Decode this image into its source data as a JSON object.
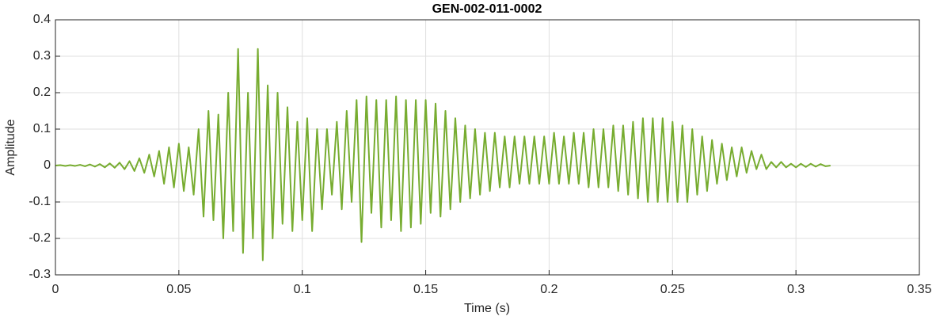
{
  "chart_data": {
    "type": "line",
    "title": "GEN-002-011-0002",
    "x_label": "Time (s)",
    "y_label": "Amplitude",
    "xlim": [
      0,
      0.35
    ],
    "xticks": [
      0,
      0.05,
      0.1,
      0.15,
      0.2,
      0.25,
      0.3,
      0.35
    ],
    "ylim": [
      -0.3,
      0.4
    ],
    "yticks": [
      -0.3,
      -0.2,
      -0.1,
      0,
      0.1,
      0.2,
      0.3,
      0.4
    ],
    "grid": true,
    "x": [
      0,
      0.002,
      0.004,
      0.006,
      0.008,
      0.01,
      0.012,
      0.014,
      0.016,
      0.018,
      0.02,
      0.022,
      0.024,
      0.026,
      0.028,
      0.03,
      0.032,
      0.034,
      0.036,
      0.038,
      0.04,
      0.042,
      0.044,
      0.046,
      0.048,
      0.05,
      0.052,
      0.054,
      0.056,
      0.058,
      0.06,
      0.062,
      0.064,
      0.066,
      0.068,
      0.07,
      0.072,
      0.074,
      0.076,
      0.078,
      0.08,
      0.082,
      0.084,
      0.086,
      0.088,
      0.09,
      0.092,
      0.094,
      0.096,
      0.098,
      0.1,
      0.102,
      0.104,
      0.106,
      0.108,
      0.11,
      0.112,
      0.114,
      0.116,
      0.118,
      0.12,
      0.122,
      0.124,
      0.126,
      0.128,
      0.13,
      0.132,
      0.134,
      0.136,
      0.138,
      0.14,
      0.142,
      0.144,
      0.146,
      0.148,
      0.15,
      0.152,
      0.154,
      0.156,
      0.158,
      0.16,
      0.162,
      0.164,
      0.166,
      0.168,
      0.17,
      0.172,
      0.174,
      0.176,
      0.178,
      0.18,
      0.182,
      0.184,
      0.186,
      0.188,
      0.19,
      0.192,
      0.194,
      0.196,
      0.198,
      0.2,
      0.202,
      0.204,
      0.206,
      0.208,
      0.21,
      0.212,
      0.214,
      0.216,
      0.218,
      0.22,
      0.222,
      0.224,
      0.226,
      0.228,
      0.23,
      0.232,
      0.234,
      0.236,
      0.238,
      0.24,
      0.242,
      0.244,
      0.246,
      0.248,
      0.25,
      0.252,
      0.254,
      0.256,
      0.258,
      0.26,
      0.262,
      0.264,
      0.266,
      0.268,
      0.27,
      0.272,
      0.274,
      0.276,
      0.278,
      0.28,
      0.282,
      0.284,
      0.286,
      0.288,
      0.29,
      0.292,
      0.294,
      0.296,
      0.298,
      0.3,
      0.302,
      0.304,
      0.306,
      0.308,
      0.31,
      0.312,
      0.314
    ],
    "series": [
      {
        "color": "#77ac30",
        "values": [
          0,
          0.001,
          -0.001,
          0.001,
          -0.001,
          0.002,
          -0.002,
          0.003,
          -0.003,
          0.004,
          -0.005,
          0.006,
          -0.006,
          0.008,
          -0.01,
          0.012,
          -0.015,
          0.02,
          -0.02,
          0.03,
          -0.03,
          0.04,
          -0.05,
          0.05,
          -0.06,
          0.06,
          -0.07,
          0.05,
          -0.08,
          0.1,
          -0.14,
          0.15,
          -0.15,
          0.14,
          -0.2,
          0.2,
          -0.18,
          0.32,
          -0.24,
          0.2,
          -0.2,
          0.32,
          -0.26,
          0.22,
          -0.2,
          0.2,
          -0.16,
          0.16,
          -0.18,
          0.12,
          -0.15,
          0.13,
          -0.18,
          0.1,
          -0.12,
          0.1,
          -0.08,
          0.12,
          -0.12,
          0.15,
          -0.1,
          0.18,
          -0.21,
          0.19,
          -0.13,
          0.18,
          -0.17,
          0.18,
          -0.15,
          0.19,
          -0.18,
          0.18,
          -0.17,
          0.18,
          -0.16,
          0.18,
          -0.13,
          0.17,
          -0.14,
          0.15,
          -0.12,
          0.13,
          -0.1,
          0.11,
          -0.09,
          0.1,
          -0.08,
          0.09,
          -0.07,
          0.09,
          -0.06,
          0.08,
          -0.06,
          0.08,
          -0.05,
          0.08,
          -0.05,
          0.08,
          -0.05,
          0.08,
          -0.05,
          0.09,
          -0.05,
          0.08,
          -0.05,
          0.09,
          -0.05,
          0.09,
          -0.06,
          0.1,
          -0.06,
          0.1,
          -0.06,
          0.11,
          -0.07,
          0.11,
          -0.08,
          0.12,
          -0.09,
          0.13,
          -0.1,
          0.13,
          -0.1,
          0.13,
          -0.1,
          0.12,
          -0.1,
          0.11,
          -0.1,
          0.1,
          -0.08,
          0.08,
          -0.07,
          0.07,
          -0.05,
          0.06,
          -0.04,
          0.05,
          -0.03,
          0.05,
          -0.02,
          0.04,
          -0.01,
          0.03,
          -0.01,
          0.01,
          -0.005,
          0.01,
          -0.005,
          0.005,
          -0.005,
          0.005,
          -0.004,
          0.005,
          -0.003,
          0.004,
          -0.002,
          0
        ]
      }
    ]
  }
}
